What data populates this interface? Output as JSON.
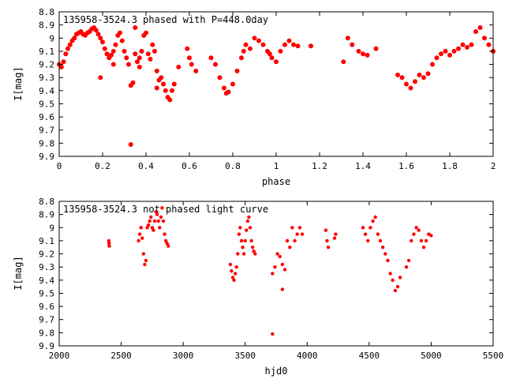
{
  "colors": {
    "points": "#ff0000",
    "axes": "#000000",
    "background": "#ffffff"
  },
  "chart_data": [
    {
      "type": "scatter",
      "title": "135958-3524.3  phased with P=448.0day",
      "xlabel": "phase",
      "ylabel": "I[mag]",
      "xlim": [
        0,
        2
      ],
      "ylim": [
        8.8,
        9.9
      ],
      "y_inverted": true,
      "grid": false,
      "x_ticks": [
        "0",
        "0.2",
        "0.4",
        "0.6",
        "0.8",
        "1",
        "1.2",
        "1.4",
        "1.6",
        "1.8",
        "2"
      ],
      "y_ticks": [
        "8.8",
        "8.9",
        "9",
        "9.1",
        "9.2",
        "9.3",
        "9.4",
        "9.5",
        "9.6",
        "9.7",
        "9.8",
        "9.9"
      ],
      "marker": "filled-circle",
      "series": [
        {
          "x": [
            0.0,
            0.01,
            0.02,
            0.03,
            0.04,
            0.05,
            0.06,
            0.07,
            0.08,
            0.09,
            0.1,
            0.11,
            0.12,
            0.13,
            0.14,
            0.15,
            0.16,
            0.17,
            0.18,
            0.19,
            0.2,
            0.21,
            0.22,
            0.23,
            0.24,
            0.25,
            0.26,
            0.27,
            0.28,
            0.29,
            0.3,
            0.31,
            0.32,
            0.33,
            0.34,
            0.35,
            0.36,
            0.37,
            0.38,
            0.39,
            0.4,
            0.41,
            0.42,
            0.43,
            0.44,
            0.45,
            0.46,
            0.47,
            0.48,
            0.49,
            0.5,
            0.51,
            0.52,
            0.53,
            0.55,
            0.59,
            0.6,
            0.61,
            0.63,
            0.7,
            0.72,
            0.74,
            0.76,
            0.78,
            0.8,
            0.82,
            0.84,
            0.86,
            0.88,
            0.9,
            0.92,
            0.94,
            0.96,
            0.98,
            1.0,
            1.02,
            1.04,
            1.06,
            1.08,
            1.1,
            1.16,
            1.31,
            1.33,
            1.35,
            1.38,
            1.4,
            1.46,
            1.56,
            1.58,
            1.6,
            1.62,
            1.64,
            1.66,
            1.68,
            1.7,
            1.72,
            1.74,
            1.76,
            1.78,
            1.8,
            1.82,
            1.84,
            1.86,
            1.88,
            1.9,
            1.92,
            1.94,
            1.96,
            1.98,
            2.0,
            0.33,
            0.35,
            0.37,
            0.19,
            0.25,
            0.45,
            0.77,
            0.85,
            0.97,
            1.42
          ],
          "y": [
            9.2,
            9.22,
            9.18,
            9.12,
            9.08,
            9.05,
            9.02,
            9.0,
            8.97,
            8.96,
            8.95,
            8.97,
            8.98,
            8.96,
            8.95,
            8.93,
            8.92,
            8.94,
            8.97,
            9.0,
            9.03,
            9.08,
            9.12,
            9.15,
            9.13,
            9.1,
            9.05,
            8.98,
            8.96,
            9.02,
            9.1,
            9.15,
            9.2,
            9.36,
            9.34,
            8.92,
            9.18,
            9.22,
            9.1,
            8.98,
            8.96,
            9.12,
            9.16,
            9.05,
            9.1,
            9.25,
            9.32,
            9.3,
            9.35,
            9.4,
            9.45,
            9.47,
            9.4,
            9.35,
            9.22,
            9.08,
            9.15,
            9.2,
            9.25,
            9.15,
            9.2,
            9.3,
            9.38,
            9.41,
            9.35,
            9.25,
            9.15,
            9.05,
            9.08,
            9.0,
            9.02,
            9.05,
            9.1,
            9.15,
            9.18,
            9.1,
            9.05,
            9.02,
            9.05,
            9.06,
            9.06,
            9.18,
            9.0,
            9.05,
            9.1,
            9.12,
            9.08,
            9.28,
            9.3,
            9.35,
            9.38,
            9.33,
            9.28,
            9.3,
            9.27,
            9.2,
            9.15,
            9.12,
            9.1,
            9.13,
            9.1,
            9.08,
            9.05,
            9.07,
            9.05,
            8.95,
            8.92,
            9.0,
            9.05,
            9.1,
            9.81,
            9.12,
            9.15,
            9.3,
            9.2,
            9.38,
            9.42,
            9.1,
            9.12,
            9.13
          ]
        }
      ]
    },
    {
      "type": "scatter",
      "title": "135958-3524.3 not phased light curve",
      "xlabel": "hjd0",
      "ylabel": "I[mag]",
      "xlim": [
        2000,
        5500
      ],
      "ylim": [
        8.8,
        9.9
      ],
      "y_inverted": true,
      "grid": false,
      "x_ticks": [
        "2000",
        "2500",
        "3000",
        "3500",
        "4000",
        "4500",
        "5000",
        "5500"
      ],
      "y_ticks": [
        "8.8",
        "8.9",
        "9",
        "9.1",
        "9.2",
        "9.3",
        "9.4",
        "9.5",
        "9.6",
        "9.7",
        "9.8",
        "9.9"
      ],
      "marker": "filled-circle",
      "series": [
        {
          "x": [
            2400,
            2402,
            2404,
            2640,
            2650,
            2660,
            2670,
            2680,
            2690,
            2700,
            2710,
            2720,
            2730,
            2740,
            2750,
            2760,
            2770,
            2780,
            2790,
            2800,
            2810,
            2820,
            2830,
            2840,
            2850,
            2860,
            2870,
            2880,
            3380,
            3390,
            3400,
            3410,
            3420,
            3430,
            3440,
            3450,
            3460,
            3470,
            3480,
            3490,
            3500,
            3510,
            3520,
            3530,
            3540,
            3550,
            3560,
            3570,
            3580,
            3720,
            3740,
            3760,
            3780,
            3800,
            3820,
            3840,
            3860,
            3880,
            3900,
            3920,
            3940,
            3960,
            3720,
            3800,
            4150,
            4160,
            4170,
            4220,
            4230,
            4450,
            4470,
            4490,
            4510,
            4530,
            4550,
            4570,
            4590,
            4610,
            4630,
            4650,
            4670,
            4690,
            4710,
            4730,
            4750,
            4800,
            4820,
            4840,
            4860,
            4880,
            4900,
            4920,
            4940,
            4960,
            4980,
            5000
          ],
          "y": [
            9.1,
            9.12,
            9.14,
            9.1,
            9.05,
            9.0,
            9.08,
            9.2,
            9.28,
            9.25,
            9.0,
            8.98,
            8.95,
            8.92,
            9.0,
            9.02,
            8.95,
            8.88,
            8.9,
            8.95,
            9.0,
            8.92,
            8.85,
            8.95,
            9.05,
            9.1,
            9.12,
            9.14,
            9.28,
            9.33,
            9.38,
            9.4,
            9.35,
            9.3,
            9.2,
            9.05,
            9.0,
            9.1,
            9.15,
            9.2,
            9.1,
            9.02,
            8.95,
            8.92,
            9.0,
            9.1,
            9.15,
            9.18,
            9.2,
            9.35,
            9.3,
            9.2,
            9.22,
            9.28,
            9.32,
            9.1,
            9.15,
            9.0,
            9.1,
            9.05,
            9.0,
            9.05,
            9.81,
            9.47,
            9.02,
            9.1,
            9.15,
            9.08,
            9.05,
            9.0,
            9.05,
            9.1,
            9.0,
            8.95,
            8.92,
            9.05,
            9.1,
            9.15,
            9.2,
            9.25,
            9.35,
            9.4,
            9.48,
            9.45,
            9.38,
            9.3,
            9.25,
            9.1,
            9.05,
            9.0,
            9.02,
            9.1,
            9.15,
            9.1,
            9.05,
            9.06
          ]
        }
      ]
    }
  ]
}
